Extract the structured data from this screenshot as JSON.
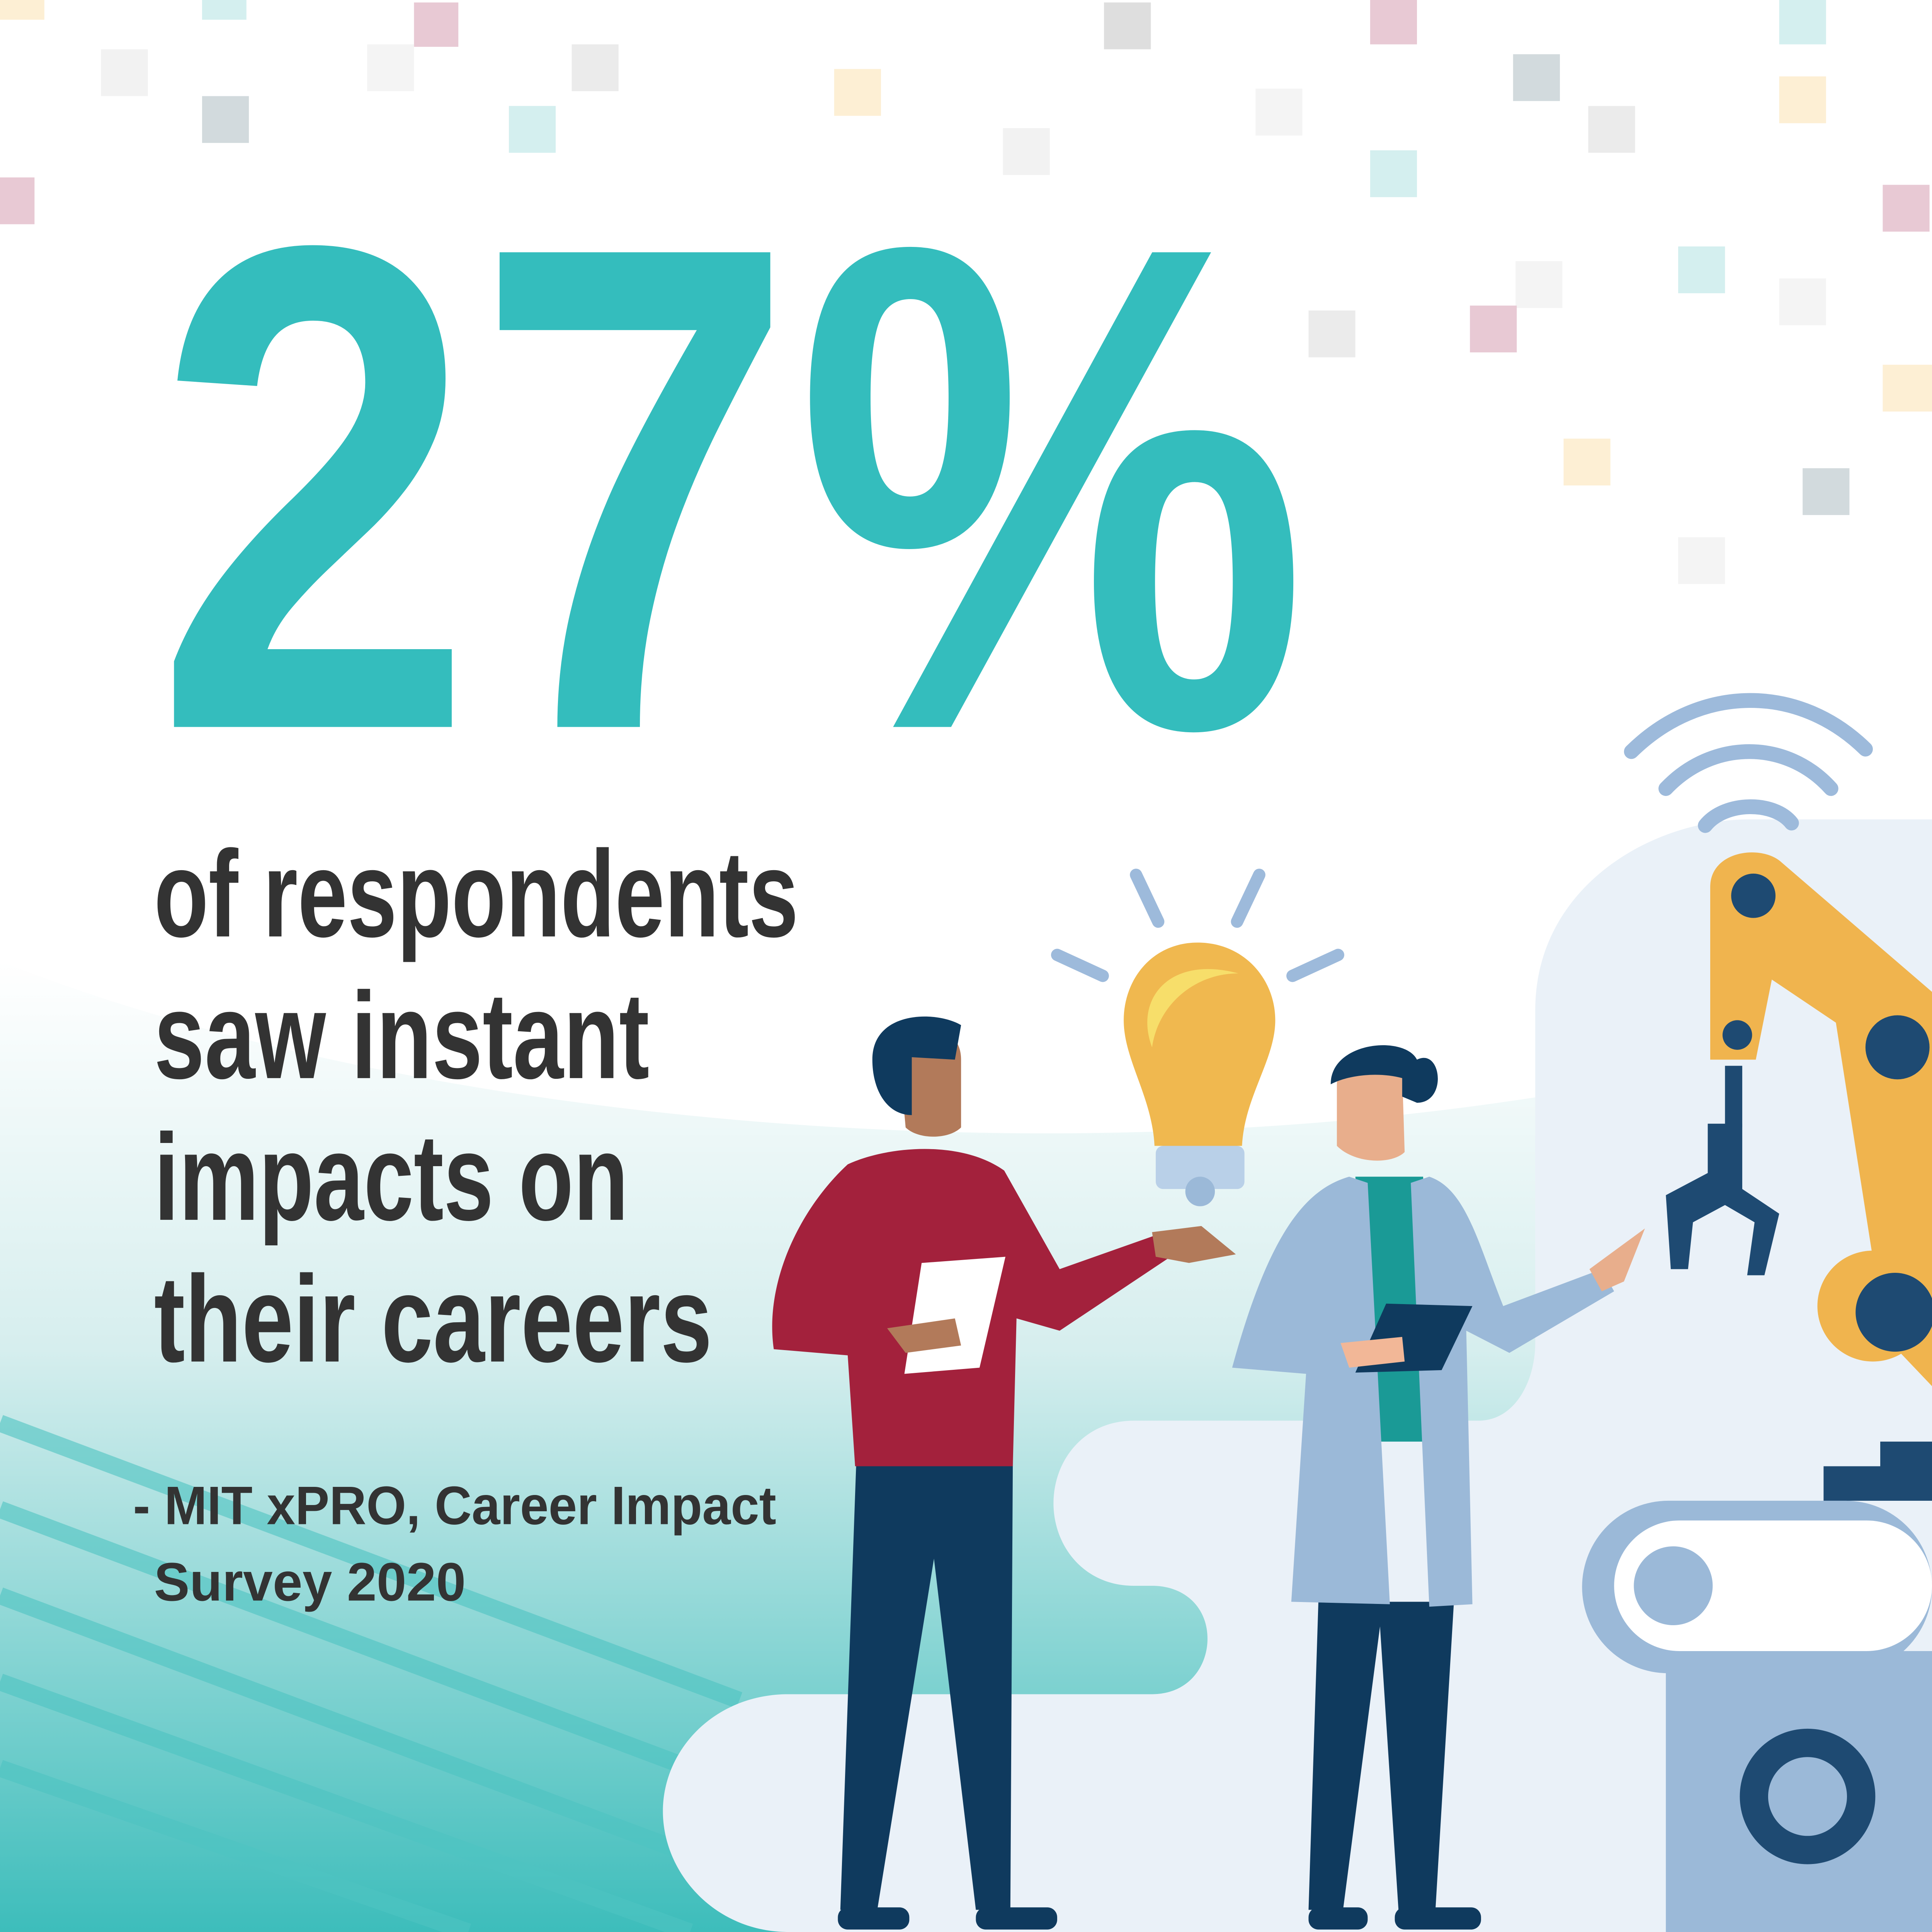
{
  "headline": "27%",
  "statement": {
    "lines": [
      "of respondents",
      "saw instant",
      "impacts on",
      "their careers"
    ]
  },
  "source": {
    "lines": [
      "- MIT xPRO, Career Impact",
      "Survey 2020"
    ]
  }
}
